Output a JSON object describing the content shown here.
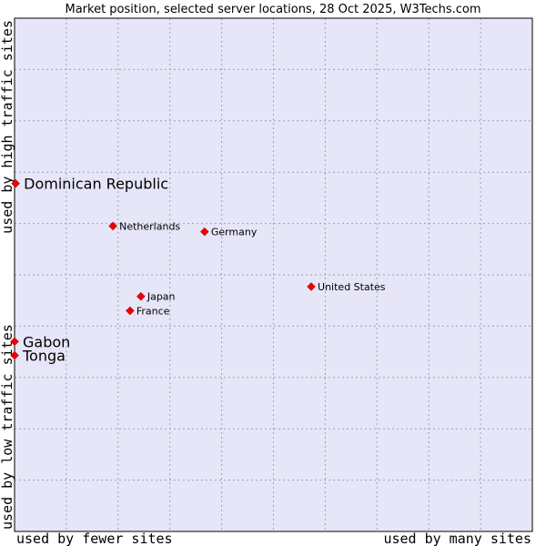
{
  "chart_data": {
    "type": "scatter",
    "title": "Market position, selected server locations, 28 Oct 2025, W3Techs.com",
    "xlabel_left": "used by fewer sites",
    "xlabel_right": "used by many sites",
    "ylabel_bottom": "used by low traffic sites",
    "ylabel_top": "used by high traffic sites",
    "xlim": [
      0,
      100
    ],
    "ylim": [
      0,
      100
    ],
    "grid": true,
    "colors": {
      "plot_bg": "#e6e6f8",
      "grid": "#a0a0b8",
      "border": "#000000",
      "marker": "#ee0000"
    },
    "points": [
      {
        "name": "Dominican Republic",
        "x": 0.2,
        "y": 67.8,
        "size": "large"
      },
      {
        "name": "Netherlands",
        "x": 19.0,
        "y": 59.5,
        "size": "small"
      },
      {
        "name": "Germany",
        "x": 36.7,
        "y": 58.4,
        "size": "small"
      },
      {
        "name": "United States",
        "x": 57.3,
        "y": 47.7,
        "size": "small"
      },
      {
        "name": "Japan",
        "x": 24.4,
        "y": 45.8,
        "size": "small"
      },
      {
        "name": "France",
        "x": 22.3,
        "y": 43.0,
        "size": "small"
      },
      {
        "name": "Gabon",
        "x": 0.0,
        "y": 37.0,
        "size": "large"
      },
      {
        "name": "Tonga",
        "x": 0.0,
        "y": 34.3,
        "size": "large"
      }
    ]
  }
}
